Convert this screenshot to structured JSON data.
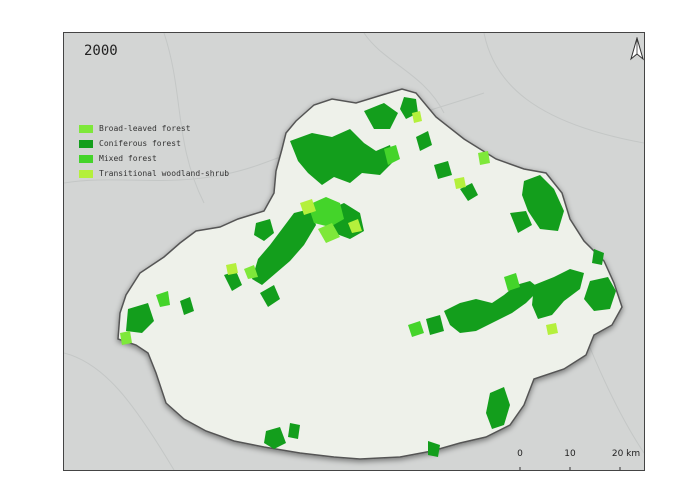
{
  "map": {
    "title": "2000",
    "north_arrow": "north-arrow-icon",
    "legend": [
      {
        "label": "Broad-leaved forest",
        "color": "#7ee83a"
      },
      {
        "label": "Coniferous forest",
        "color": "#139e1c"
      },
      {
        "label": "Mixed forest",
        "color": "#44d42a"
      },
      {
        "label": "Transitional woodland-shrub",
        "color": "#b4f03c"
      }
    ],
    "scalebar": {
      "labels": [
        "0",
        "10",
        "20 km"
      ]
    },
    "colors": {
      "basemap": "#d3d5d4",
      "region_fill": "#eef1ea",
      "region_outline": "#555555",
      "coniferous": "#139e1c",
      "broadleaved": "#7ee83a",
      "mixed": "#44d42a",
      "shrub": "#b4f03c"
    }
  }
}
